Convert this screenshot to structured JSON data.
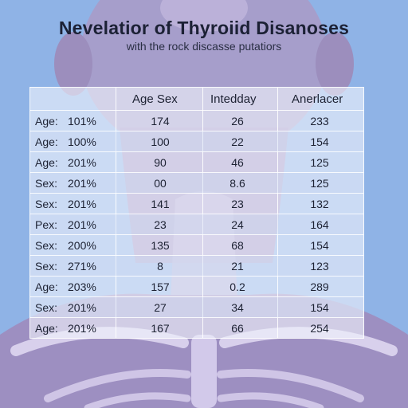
{
  "title": "Nevelatior of Thyroiid Disanoses",
  "subtitle": "with the rock discasse putatiors",
  "table": {
    "headers": [
      "",
      "Age Sex",
      "Intedday",
      "Anerlacer"
    ],
    "rows": [
      {
        "label": "Age:",
        "pct": "101%",
        "a": "174",
        "b": "26",
        "c": "233"
      },
      {
        "label": "Age:",
        "pct": "100%",
        "a": "100",
        "b": "22",
        "c": "154"
      },
      {
        "label": "Age:",
        "pct": "201%",
        "a": "90",
        "b": "46",
        "c": "125"
      },
      {
        "label": "Sex:",
        "pct": "201%",
        "a": "00",
        "b": "8.6",
        "c": "125"
      },
      {
        "label": "Sex:",
        "pct": "201%",
        "a": "141",
        "b": "23",
        "c": "132"
      },
      {
        "label": "Pex:",
        "pct": "201%",
        "a": "23",
        "b": "24",
        "c": "164"
      },
      {
        "label": "Sex:",
        "pct": "200%",
        "a": "135",
        "b": "68",
        "c": "154"
      },
      {
        "label": "Sex:",
        "pct": "271%",
        "a": "8",
        "b": "21",
        "c": "123"
      },
      {
        "label": "Age:",
        "pct": "203%",
        "a": "157",
        "b": "0.2",
        "c": "289"
      },
      {
        "label": "Sex:",
        "pct": "201%",
        "a": "27",
        "b": "34",
        "c": "154"
      },
      {
        "label": "Age:",
        "pct": "201%",
        "a": "167",
        "b": "66",
        "c": "254"
      }
    ]
  },
  "colors": {
    "background": "#8fb3e6",
    "figure": "#a99bc8",
    "text": "#1d2233"
  }
}
